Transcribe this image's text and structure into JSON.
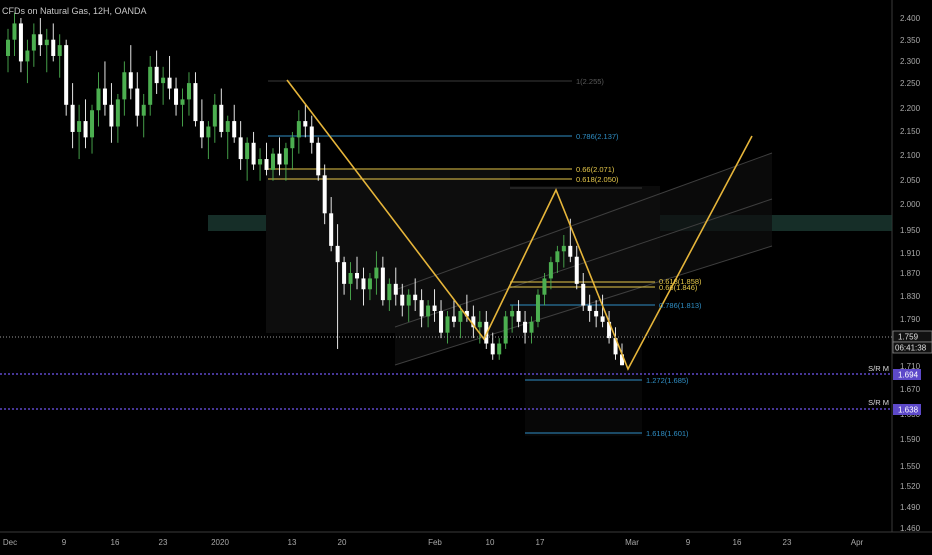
{
  "header": {
    "title": "CFDs on Natural Gas, 12H, OANDA"
  },
  "colors": {
    "background": "#000000",
    "bull_candle": "#4caf50",
    "bear_candle": "#ffffff",
    "pattern_line": "#e6b53a",
    "fib_blue": "#2f8ec4",
    "fib_yellow": "#e6c84a",
    "sr_line": "#5d49c9",
    "channel_line": "#3a3a3a",
    "zone_teal": "#1e3d36"
  },
  "price_axis": {
    "ticks": [
      "2.400",
      "2.350",
      "2.300",
      "2.250",
      "2.200",
      "2.150",
      "2.100",
      "2.050",
      "2.000",
      "1.950",
      "1.910",
      "1.870",
      "1.830",
      "1.790",
      "1.750",
      "1.710",
      "1.670",
      "1.630",
      "1.590",
      "1.550",
      "1.520",
      "1.490",
      "1.460"
    ],
    "current_price": "1.759",
    "countdown": "06:41:38",
    "sr_labels": [
      {
        "text": "S/R M",
        "value": "1.694"
      },
      {
        "text": "S/R M",
        "value": "1.638"
      }
    ]
  },
  "time_axis": {
    "labels": [
      "Dec",
      "9",
      "16",
      "23",
      "2020",
      "13",
      "20",
      "Feb",
      "10",
      "17",
      "Mar",
      "9",
      "16",
      "23",
      "Apr"
    ]
  },
  "fib_levels": [
    {
      "label": "1(2.255)",
      "color": "faded"
    },
    {
      "label": "0.786(2.137)",
      "color": "blue"
    },
    {
      "label": "0.66(2.071)",
      "color": "yellow"
    },
    {
      "label": "0.618(2.050)",
      "color": "yellow"
    },
    {
      "label": "0.618(1.858)",
      "color": "yellow"
    },
    {
      "label": "0.66(1.846)",
      "color": "yellow"
    },
    {
      "label": "0.786(1.813)",
      "color": "blue"
    },
    {
      "label": "1.272(1.685)",
      "color": "blue"
    },
    {
      "label": "1.618(1.601)",
      "color": "blue"
    }
  ],
  "chart_data": {
    "type": "candlestick",
    "symbol": "CFDs on Natural Gas",
    "interval": "12H",
    "ylim": [
      1.46,
      2.42
    ],
    "ohlc": [
      [
        2.33,
        2.38,
        2.3,
        2.36
      ],
      [
        2.36,
        2.41,
        2.33,
        2.39
      ],
      [
        2.39,
        2.4,
        2.3,
        2.32
      ],
      [
        2.32,
        2.36,
        2.28,
        2.34
      ],
      [
        2.34,
        2.39,
        2.31,
        2.37
      ],
      [
        2.37,
        2.4,
        2.33,
        2.35
      ],
      [
        2.35,
        2.38,
        2.3,
        2.36
      ],
      [
        2.36,
        2.39,
        2.32,
        2.33
      ],
      [
        2.33,
        2.37,
        2.29,
        2.35
      ],
      [
        2.35,
        2.36,
        2.22,
        2.24
      ],
      [
        2.24,
        2.28,
        2.16,
        2.19
      ],
      [
        2.19,
        2.24,
        2.14,
        2.21
      ],
      [
        2.21,
        2.25,
        2.16,
        2.18
      ],
      [
        2.18,
        2.24,
        2.15,
        2.23
      ],
      [
        2.23,
        2.3,
        2.2,
        2.27
      ],
      [
        2.27,
        2.32,
        2.22,
        2.24
      ],
      [
        2.24,
        2.28,
        2.17,
        2.2
      ],
      [
        2.2,
        2.26,
        2.17,
        2.25
      ],
      [
        2.25,
        2.32,
        2.22,
        2.3
      ],
      [
        2.3,
        2.35,
        2.25,
        2.27
      ],
      [
        2.27,
        2.3,
        2.2,
        2.22
      ],
      [
        2.22,
        2.26,
        2.18,
        2.24
      ],
      [
        2.24,
        2.33,
        2.22,
        2.31
      ],
      [
        2.31,
        2.34,
        2.26,
        2.28
      ],
      [
        2.28,
        2.31,
        2.24,
        2.29
      ],
      [
        2.29,
        2.33,
        2.25,
        2.27
      ],
      [
        2.27,
        2.29,
        2.22,
        2.24
      ],
      [
        2.24,
        2.27,
        2.2,
        2.25
      ],
      [
        2.25,
        2.3,
        2.22,
        2.28
      ],
      [
        2.28,
        2.3,
        2.2,
        2.21
      ],
      [
        2.21,
        2.25,
        2.16,
        2.18
      ],
      [
        2.18,
        2.21,
        2.14,
        2.2
      ],
      [
        2.2,
        2.26,
        2.17,
        2.24
      ],
      [
        2.24,
        2.27,
        2.18,
        2.19
      ],
      [
        2.19,
        2.22,
        2.14,
        2.21
      ],
      [
        2.21,
        2.24,
        2.17,
        2.18
      ],
      [
        2.18,
        2.21,
        2.12,
        2.14
      ],
      [
        2.14,
        2.18,
        2.1,
        2.17
      ],
      [
        2.17,
        2.19,
        2.12,
        2.13
      ],
      [
        2.13,
        2.16,
        2.1,
        2.14
      ],
      [
        2.14,
        2.17,
        2.11,
        2.12
      ],
      [
        2.12,
        2.16,
        2.1,
        2.15
      ],
      [
        2.15,
        2.18,
        2.11,
        2.13
      ],
      [
        2.13,
        2.17,
        2.1,
        2.16
      ],
      [
        2.16,
        2.19,
        2.12,
        2.18
      ],
      [
        2.18,
        2.23,
        2.15,
        2.21
      ],
      [
        2.21,
        2.24,
        2.18,
        2.2
      ],
      [
        2.2,
        2.22,
        2.15,
        2.17
      ],
      [
        2.17,
        2.18,
        2.1,
        2.11
      ],
      [
        2.11,
        2.13,
        2.02,
        2.04
      ],
      [
        2.04,
        2.07,
        1.97,
        1.98
      ],
      [
        1.98,
        2.02,
        1.79,
        1.95
      ],
      [
        1.95,
        1.96,
        1.89,
        1.91
      ],
      [
        1.91,
        1.95,
        1.88,
        1.93
      ],
      [
        1.93,
        1.96,
        1.9,
        1.92
      ],
      [
        1.92,
        1.94,
        1.87,
        1.9
      ],
      [
        1.9,
        1.93,
        1.88,
        1.92
      ],
      [
        1.92,
        1.97,
        1.89,
        1.94
      ],
      [
        1.94,
        1.96,
        1.87,
        1.88
      ],
      [
        1.88,
        1.92,
        1.86,
        1.91
      ],
      [
        1.91,
        1.94,
        1.87,
        1.89
      ],
      [
        1.89,
        1.91,
        1.85,
        1.87
      ],
      [
        1.87,
        1.9,
        1.84,
        1.89
      ],
      [
        1.89,
        1.92,
        1.86,
        1.88
      ],
      [
        1.88,
        1.9,
        1.83,
        1.85
      ],
      [
        1.85,
        1.88,
        1.83,
        1.87
      ],
      [
        1.87,
        1.9,
        1.84,
        1.86
      ],
      [
        1.86,
        1.88,
        1.81,
        1.82
      ],
      [
        1.82,
        1.86,
        1.8,
        1.85
      ],
      [
        1.85,
        1.88,
        1.83,
        1.84
      ],
      [
        1.84,
        1.87,
        1.81,
        1.86
      ],
      [
        1.86,
        1.89,
        1.84,
        1.85
      ],
      [
        1.85,
        1.87,
        1.81,
        1.83
      ],
      [
        1.83,
        1.86,
        1.8,
        1.84
      ],
      [
        1.84,
        1.86,
        1.79,
        1.8
      ],
      [
        1.8,
        1.82,
        1.77,
        1.78
      ],
      [
        1.78,
        1.81,
        1.77,
        1.8
      ],
      [
        1.8,
        1.86,
        1.79,
        1.85
      ],
      [
        1.85,
        1.87,
        1.82,
        1.86
      ],
      [
        1.86,
        1.88,
        1.83,
        1.84
      ],
      [
        1.84,
        1.86,
        1.8,
        1.82
      ],
      [
        1.82,
        1.85,
        1.8,
        1.84
      ],
      [
        1.84,
        1.9,
        1.83,
        1.89
      ],
      [
        1.89,
        1.93,
        1.87,
        1.92
      ],
      [
        1.92,
        1.96,
        1.9,
        1.95
      ],
      [
        1.95,
        1.98,
        1.93,
        1.97
      ],
      [
        1.97,
        2.0,
        1.94,
        1.98
      ],
      [
        1.98,
        2.03,
        1.95,
        1.96
      ],
      [
        1.96,
        1.98,
        1.9,
        1.91
      ],
      [
        1.91,
        1.93,
        1.86,
        1.87
      ],
      [
        1.87,
        1.89,
        1.84,
        1.86
      ],
      [
        1.86,
        1.88,
        1.83,
        1.85
      ],
      [
        1.85,
        1.89,
        1.83,
        1.84
      ],
      [
        1.84,
        1.86,
        1.8,
        1.81
      ],
      [
        1.81,
        1.83,
        1.77,
        1.78
      ],
      [
        1.78,
        1.8,
        1.76,
        1.76
      ]
    ]
  }
}
